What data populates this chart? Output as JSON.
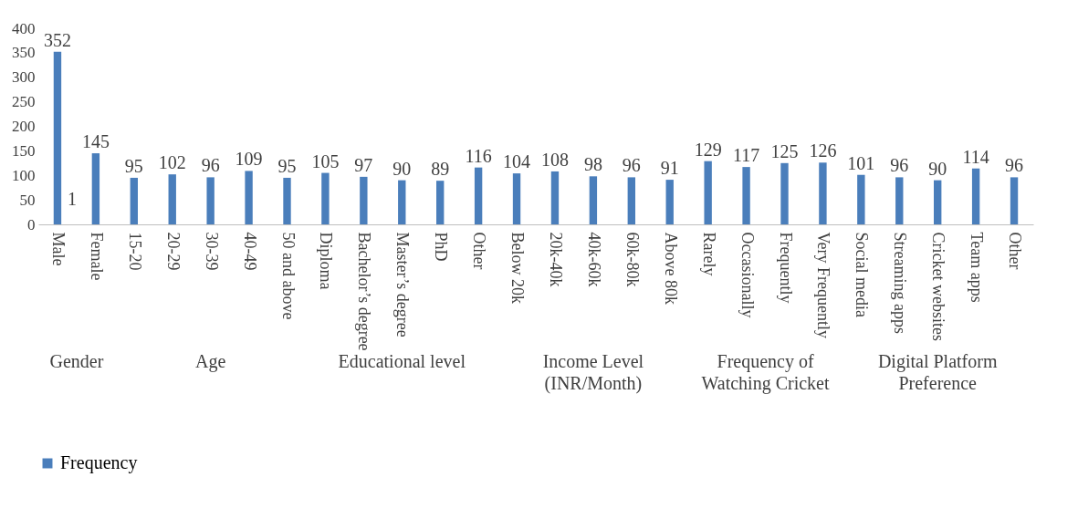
{
  "chart_data": {
    "type": "bar",
    "categories": [
      "Male",
      "Female",
      "15-20",
      "20-29",
      "30-39",
      "40-49",
      "50 and above",
      "Diploma",
      "Bachelor’s degree",
      "Master’s degree",
      "PhD",
      "Other",
      "Below 20k",
      "20k-40k",
      "40k-60k",
      "60k-80k",
      "Above 80k",
      "Rarely",
      "Occasionally",
      "Frequently",
      "Very Frequently",
      "Social media",
      "Streaming apps",
      "Cricket websites",
      "Team apps",
      "Other"
    ],
    "series": [
      {
        "name": "Frequency",
        "color": "#4a7ebb",
        "values": [
          352,
          145,
          95,
          102,
          96,
          109,
          95,
          105,
          97,
          90,
          89,
          116,
          104,
          108,
          98,
          96,
          91,
          129,
          117,
          125,
          126,
          101,
          96,
          90,
          114,
          96
        ]
      }
    ],
    "ylim": [
      0,
      400
    ],
    "yticks": [
      0,
      50,
      100,
      150,
      200,
      250,
      300,
      350,
      400
    ],
    "grid": false,
    "legend": "bottom",
    "data_labels": true,
    "annotations": [
      {
        "text": "1",
        "x": "Male",
        "y": 50
      },
      "Gender",
      "Age",
      "Educational level",
      "Income Level (INR/Month)",
      "Frequency of Watching Cricket",
      "Digital Platform Preference"
    ]
  }
}
